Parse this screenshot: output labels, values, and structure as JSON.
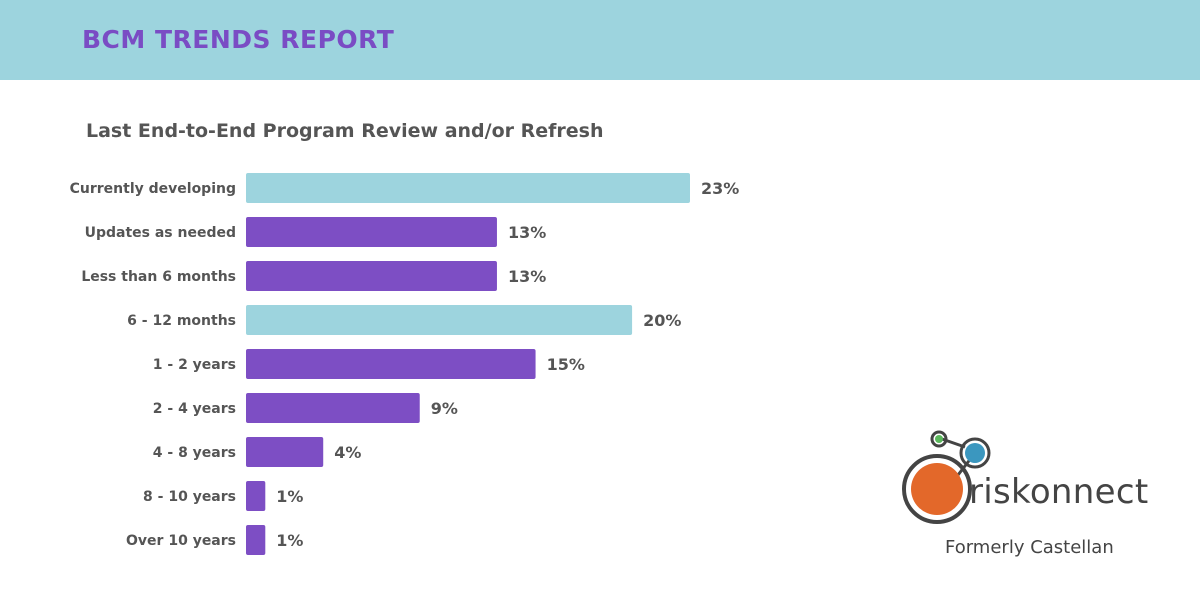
{
  "header": {
    "title": "BCM TRENDS REPORT"
  },
  "colors": {
    "header_bg": "#9dd4de",
    "header_text": "#7a4cc4",
    "highlight_bar": "#9dd4de",
    "bar": "#7d4ec4"
  },
  "chart_data": {
    "type": "bar",
    "orientation": "horizontal",
    "title": "Last End-to-End Program Review and/or Refresh",
    "categories": [
      "Currently developing",
      "Updates as needed",
      "Less than 6 months",
      "6 - 12 months",
      "1 - 2 years",
      "2 - 4 years",
      "4 - 8 years",
      "8 - 10 years",
      "Over 10 years"
    ],
    "values": [
      23,
      13,
      13,
      20,
      15,
      9,
      4,
      1,
      1
    ],
    "value_labels": [
      "23%",
      "13%",
      "13%",
      "20%",
      "15%",
      "9%",
      "4%",
      "1%",
      "1%"
    ],
    "highlighted": [
      true,
      false,
      false,
      true,
      false,
      false,
      false,
      false,
      false
    ],
    "xlim": [
      0,
      23
    ],
    "grid": false
  },
  "brand": {
    "name": "riskonnect",
    "tagline": "Formerly Castellan",
    "icon": "riskonnect-logo-icon"
  }
}
